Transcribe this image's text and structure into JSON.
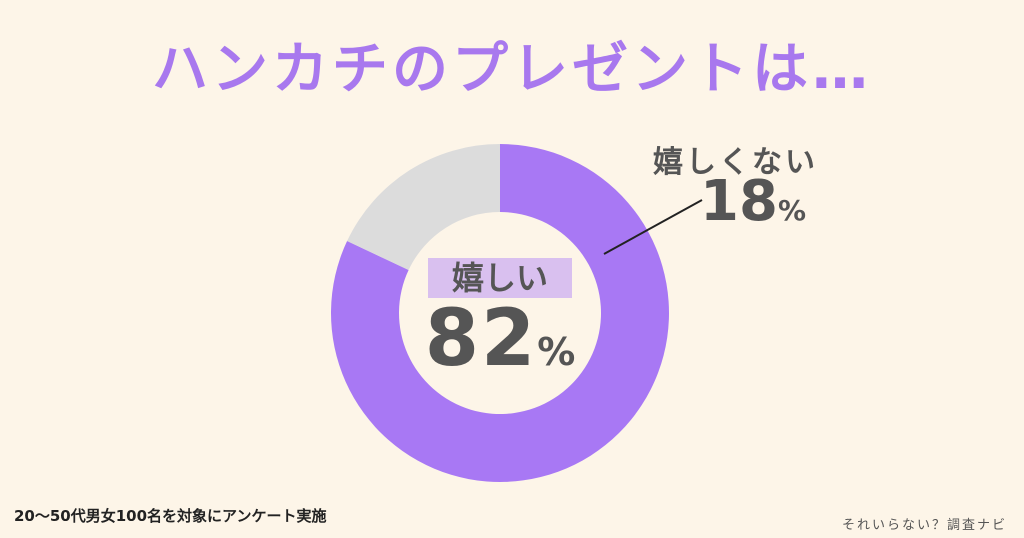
{
  "title": "ハンカチのプレゼントは…",
  "chart_data": {
    "type": "pie",
    "style": "donut",
    "slices": [
      {
        "label": "嬉しい",
        "value": 82,
        "display": "82",
        "unit": "%",
        "color": "#a878f4"
      },
      {
        "label": "嬉しくない",
        "value": 18,
        "display": "18",
        "unit": "%",
        "color": "#dcdcdc"
      }
    ]
  },
  "footnote": "20〜50代男女100名を対象にアンケート実施",
  "brand": "それいらない？調査ナビ",
  "colors": {
    "background": "#fdf5e8",
    "accent": "#a878ee",
    "highlight": "#d9c0ef",
    "text": "#555555"
  }
}
